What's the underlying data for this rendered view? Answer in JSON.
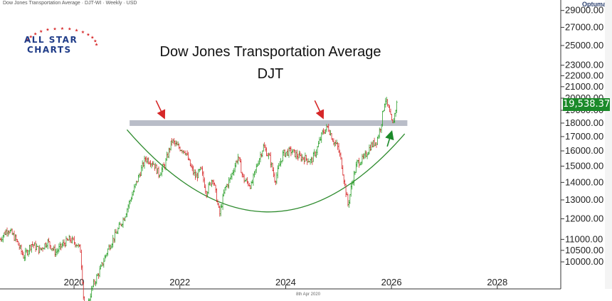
{
  "header": {
    "info": "Dow Jones Transportation Average · DJT-WI · Weekly · USD",
    "brand": "Optuma",
    "footer_date": "8th Apr 2020"
  },
  "logo": {
    "line1": "ALL STAR",
    "line2": "CHARTS",
    "color": "#1f3c88",
    "star_color": "#d62728"
  },
  "price_label": {
    "value": "19,538.37",
    "color": "#1b8a2a"
  },
  "chart_data": {
    "type": "candlestick",
    "title": "Dow Jones Transportation Average",
    "subtitle": "DJT",
    "y_ticks": [
      10000,
      10500,
      11000,
      12000,
      13000,
      14000,
      15000,
      16000,
      17000,
      18000,
      19000,
      20000,
      21000,
      22000,
      23000,
      25000,
      27000,
      29000
    ],
    "y_tick_labels": [
      "10000.00",
      "10500.00",
      "11000.00",
      "12000.00",
      "13000.00",
      "14000.00",
      "15000.00",
      "16000.00",
      "17000.00",
      "18000.00",
      "19000.00",
      "20000.00",
      "21000.00",
      "22000.00",
      "23000.00",
      "25000.00",
      "27000.00",
      "29000.00"
    ],
    "y_scale": "log",
    "x_ticks": [
      "2020",
      "2022",
      "2024",
      "2026",
      "2028"
    ],
    "x_range": [
      2018.6,
      2029.2
    ],
    "resistance_level": 18000,
    "resistance_color": "#b9bdc8",
    "up_color": "#2ca02c",
    "down_color": "#d62728",
    "annotation_color_red": "#d62728",
    "annotation_color_green": "#1b8a2a",
    "arc_color": "#2e8b2e",
    "path": [
      [
        2018.6,
        11000
      ],
      [
        2018.75,
        11500
      ],
      [
        2018.9,
        11000
      ],
      [
        2019.05,
        10200
      ],
      [
        2019.2,
        10800
      ],
      [
        2019.35,
        10500
      ],
      [
        2019.5,
        10900
      ],
      [
        2019.65,
        10400
      ],
      [
        2019.8,
        10800
      ],
      [
        2019.92,
        11000
      ],
      [
        2020.05,
        10800
      ],
      [
        2020.12,
        10500
      ],
      [
        2020.2,
        7900
      ],
      [
        2020.35,
        9000
      ],
      [
        2020.5,
        9700
      ],
      [
        2020.65,
        10600
      ],
      [
        2020.8,
        11300
      ],
      [
        2020.95,
        12100
      ],
      [
        2021.1,
        13300
      ],
      [
        2021.25,
        14600
      ],
      [
        2021.35,
        15500
      ],
      [
        2021.5,
        15200
      ],
      [
        2021.6,
        14500
      ],
      [
        2021.72,
        15100
      ],
      [
        2021.85,
        16700
      ],
      [
        2021.95,
        16300
      ],
      [
        2022.1,
        16000
      ],
      [
        2022.2,
        15000
      ],
      [
        2022.3,
        14300
      ],
      [
        2022.4,
        14800
      ],
      [
        2022.5,
        13400
      ],
      [
        2022.62,
        14300
      ],
      [
        2022.75,
        12200
      ],
      [
        2022.85,
        13600
      ],
      [
        2022.95,
        14200
      ],
      [
        2023.1,
        15600
      ],
      [
        2023.2,
        14200
      ],
      [
        2023.35,
        13800
      ],
      [
        2023.48,
        15300
      ],
      [
        2023.58,
        16300
      ],
      [
        2023.7,
        15500
      ],
      [
        2023.8,
        14100
      ],
      [
        2023.95,
        15800
      ],
      [
        2024.1,
        16000
      ],
      [
        2024.25,
        15600
      ],
      [
        2024.38,
        15500
      ],
      [
        2024.48,
        15300
      ],
      [
        2024.58,
        16000
      ],
      [
        2024.7,
        17300
      ],
      [
        2024.8,
        17700
      ],
      [
        2024.9,
        16700
      ],
      [
        2024.98,
        16300
      ],
      [
        2025.05,
        15300
      ],
      [
        2025.12,
        13800
      ],
      [
        2025.18,
        12700
      ],
      [
        2025.25,
        13900
      ],
      [
        2025.35,
        15200
      ],
      [
        2025.48,
        15500
      ],
      [
        2025.6,
        16300
      ],
      [
        2025.72,
        16700
      ],
      [
        2025.8,
        17800
      ],
      [
        2025.88,
        20000
      ],
      [
        2025.95,
        19000
      ],
      [
        2026.02,
        17800
      ],
      [
        2026.1,
        19538
      ]
    ],
    "arrows": [
      {
        "color": "red",
        "from": [
          2021.55,
          19800
        ],
        "to": [
          2021.7,
          18450
        ]
      },
      {
        "color": "red",
        "from": [
          2024.55,
          19800
        ],
        "to": [
          2024.7,
          18450
        ]
      },
      {
        "color": "green",
        "from": [
          2025.92,
          16300
        ],
        "to": [
          2026.0,
          17300
        ]
      }
    ]
  }
}
